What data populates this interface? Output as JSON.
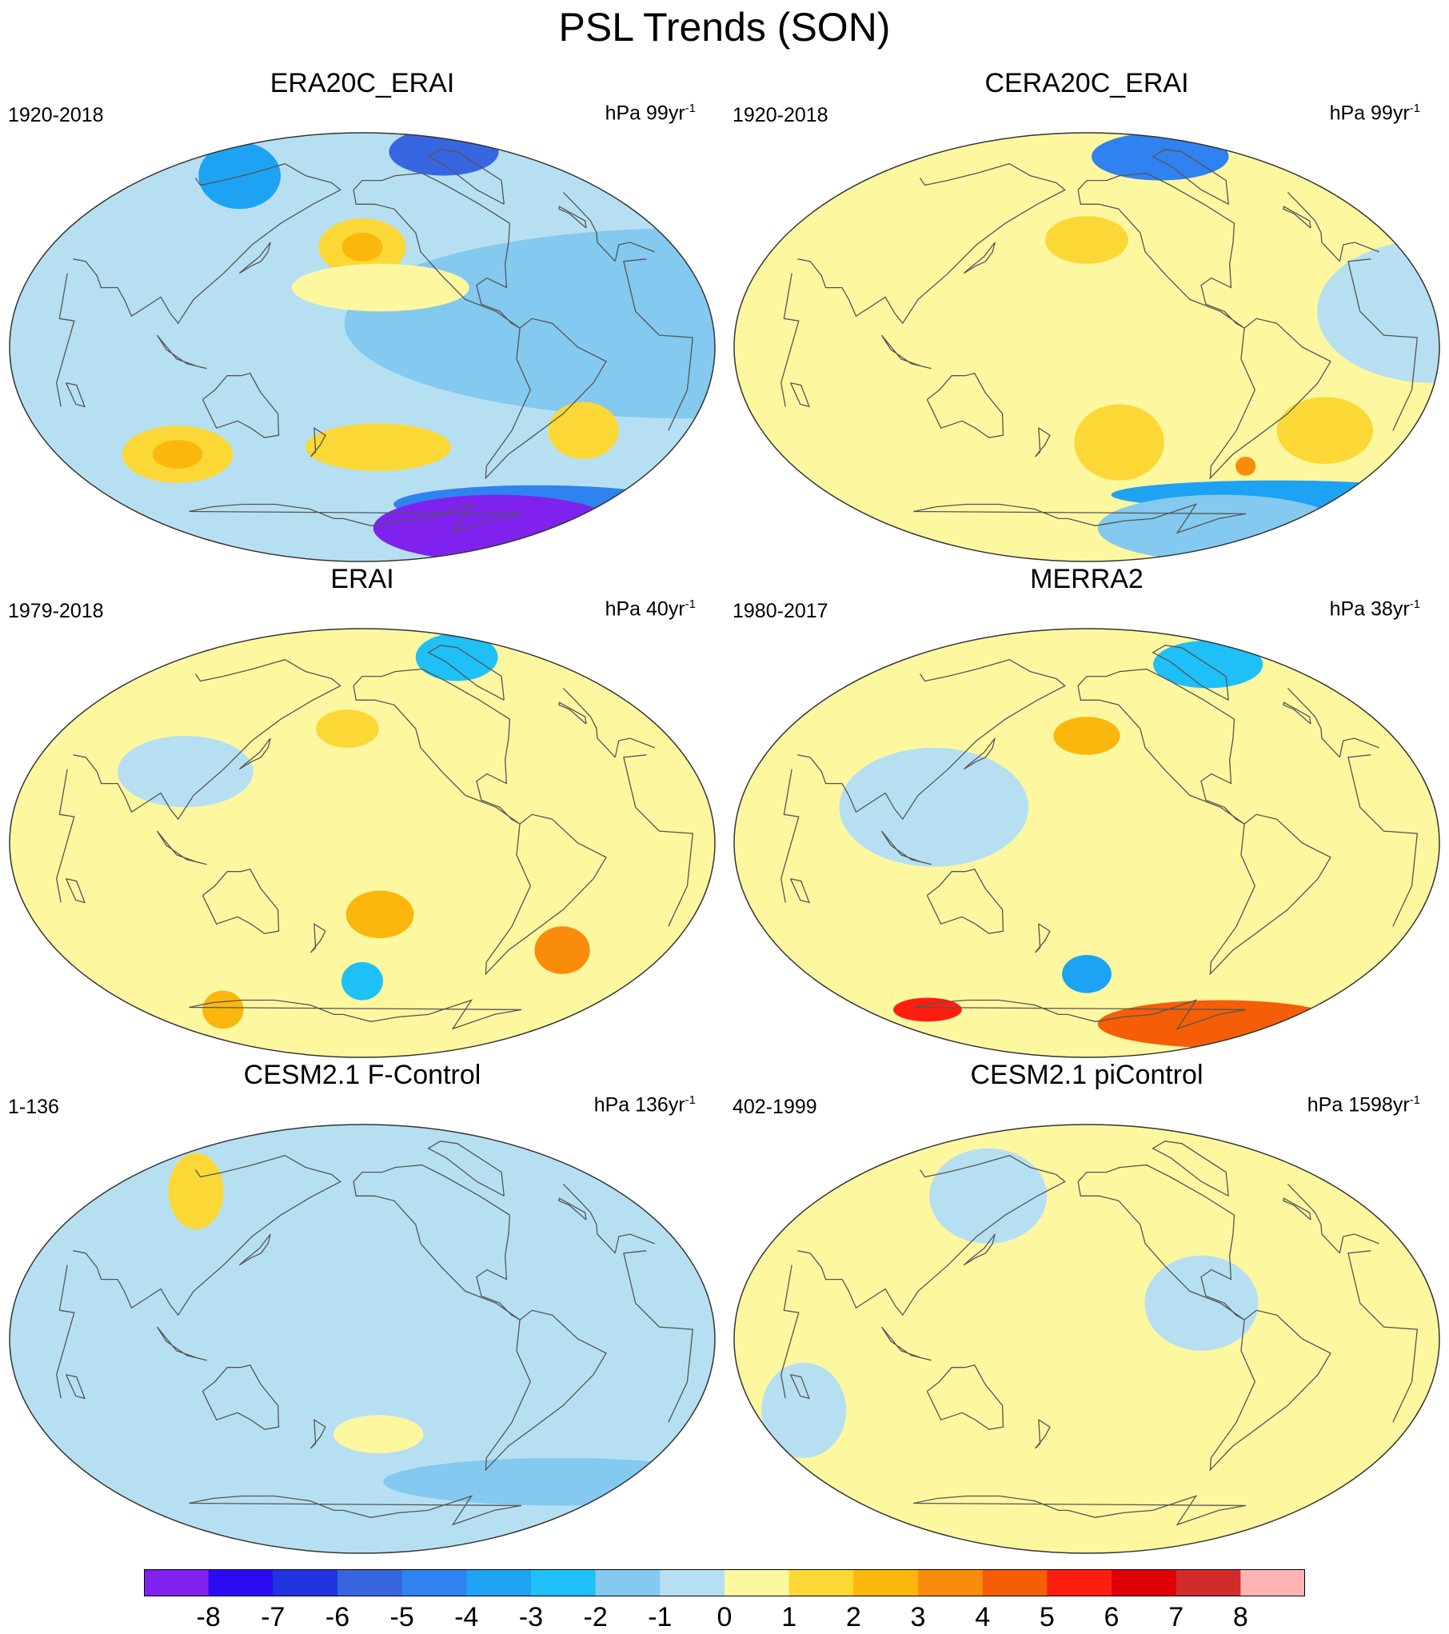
{
  "title": "PSL Trends (SON)",
  "colors": {
    "levels": [
      "#7f22ee",
      "#2b0cf2",
      "#2234e0",
      "#3766e0",
      "#2f82ef",
      "#1da2f4",
      "#1ec0f7",
      "#84c9ef",
      "#b6e0f2",
      "#fdf7a0",
      "#fbd835",
      "#fbb70c",
      "#f98c0a",
      "#f55d07",
      "#fe1e10",
      "#df0008",
      "#d12b2b",
      "#ffb3b2"
    ],
    "land_outline": "#555555",
    "map_border": "#333333"
  },
  "colorbar": {
    "labels": [
      "-8",
      "-7",
      "-6",
      "-5",
      "-4",
      "-3",
      "-2",
      "-1",
      "0",
      "1",
      "2",
      "3",
      "4",
      "5",
      "6",
      "7",
      "8"
    ]
  },
  "panels": [
    {
      "title": "ERA20C_ERAI",
      "period": "1920-2018",
      "units_prefix": "hPa 99yr",
      "units_exp": "-1",
      "base_level": 8,
      "blobs": [
        {
          "lon": 10,
          "lat": 10,
          "rlon": 180,
          "rlat": 40,
          "level": 7
        },
        {
          "lon": -40,
          "lat": 82,
          "rlon": 80,
          "rlat": 10,
          "level": 3
        },
        {
          "lon": 70,
          "lat": 72,
          "rlon": 60,
          "rlat": 14,
          "level": 5
        },
        {
          "lon": -160,
          "lat": 42,
          "rlon": 30,
          "rlat": 12,
          "level": 10
        },
        {
          "lon": -160,
          "lat": 42,
          "rlon": 14,
          "rlat": 6,
          "level": 11
        },
        {
          "lon": -150,
          "lat": 25,
          "rlon": 50,
          "rlat": 10,
          "level": 9
        },
        {
          "lon": -150,
          "lat": -42,
          "rlon": 50,
          "rlat": 10,
          "level": 10
        },
        {
          "lon": 80,
          "lat": -45,
          "rlon": 40,
          "rlat": 12,
          "level": 10
        },
        {
          "lon": 80,
          "lat": -45,
          "rlon": 18,
          "rlat": 6,
          "level": 11
        },
        {
          "lon": -30,
          "lat": -35,
          "rlon": 22,
          "rlat": 12,
          "level": 10
        },
        {
          "lon": 0,
          "lat": -66,
          "rlon": 180,
          "rlat": 8,
          "level": 4
        },
        {
          "lon": 0,
          "lat": -76,
          "rlon": 180,
          "rlat": 14,
          "level": 0
        }
      ]
    },
    {
      "title": "CERA20C_ERAI",
      "period": "1920-2018",
      "units_prefix": "hPa 99yr",
      "units_exp": "-1",
      "base_level": 9,
      "blobs": [
        {
          "lon": 20,
          "lat": 15,
          "rlon": 60,
          "rlat": 30,
          "level": 8
        },
        {
          "lon": -60,
          "lat": 80,
          "rlon": 100,
          "rlat": 10,
          "level": 4
        },
        {
          "lon": -160,
          "lat": 45,
          "rlon": 30,
          "rlat": 10,
          "level": 10
        },
        {
          "lon": -140,
          "lat": -40,
          "rlon": 30,
          "rlat": 16,
          "level": 10
        },
        {
          "lon": -20,
          "lat": -35,
          "rlon": 30,
          "rlat": 14,
          "level": 10
        },
        {
          "lon": -50,
          "lat": -50,
          "rlon": 8,
          "rlat": 4,
          "level": 12
        },
        {
          "lon": 0,
          "lat": -62,
          "rlon": 180,
          "rlat": 6,
          "level": 5
        },
        {
          "lon": 0,
          "lat": -76,
          "rlon": 180,
          "rlat": 14,
          "level": 7
        }
      ]
    },
    {
      "title": "ERAI",
      "period": "1979-2018",
      "units_prefix": "hPa 40yr",
      "units_exp": "-1",
      "base_level": 9,
      "blobs": [
        {
          "lon": 100,
          "lat": 30,
          "rlon": 40,
          "rlat": 15,
          "level": 8
        },
        {
          "lon": -40,
          "lat": 78,
          "rlon": 60,
          "rlat": 10,
          "level": 6
        },
        {
          "lon": -170,
          "lat": 48,
          "rlon": 24,
          "rlat": 8,
          "level": 10
        },
        {
          "lon": -150,
          "lat": -30,
          "rlon": 20,
          "rlat": 10,
          "level": 11
        },
        {
          "lon": -160,
          "lat": -58,
          "rlon": 20,
          "rlat": 8,
          "level": 6
        },
        {
          "lon": -30,
          "lat": -45,
          "rlon": 20,
          "rlat": 10,
          "level": 12
        },
        {
          "lon": 60,
          "lat": -70,
          "rlon": 30,
          "rlat": 8,
          "level": 11
        }
      ]
    },
    {
      "title": "MERRA2",
      "period": "1980-2017",
      "units_prefix": "hPa 38yr",
      "units_exp": "-1",
      "base_level": 9,
      "blobs": [
        {
          "lon": 120,
          "lat": 15,
          "rlon": 50,
          "rlat": 25,
          "level": 8
        },
        {
          "lon": -20,
          "lat": 75,
          "rlon": 80,
          "rlat": 10,
          "level": 6
        },
        {
          "lon": -160,
          "lat": 45,
          "rlon": 24,
          "rlat": 8,
          "level": 11
        },
        {
          "lon": -160,
          "lat": -55,
          "rlon": 22,
          "rlat": 8,
          "level": 5
        },
        {
          "lon": 0,
          "lat": -76,
          "rlon": 180,
          "rlat": 10,
          "level": 13
        },
        {
          "lon": 40,
          "lat": -70,
          "rlon": 50,
          "rlat": 5,
          "level": 14
        }
      ]
    },
    {
      "title": "CESM2.1 F-Control",
      "period": "1-136",
      "units_prefix": "hPa 136yr",
      "units_exp": "-1",
      "base_level": 8,
      "blobs": [
        {
          "lon": 60,
          "lat": 62,
          "rlon": 30,
          "rlat": 16,
          "level": 10
        },
        {
          "lon": -150,
          "lat": -40,
          "rlon": 30,
          "rlat": 8,
          "level": 9
        },
        {
          "lon": 0,
          "lat": -60,
          "rlon": 180,
          "rlat": 10,
          "level": 7
        }
      ]
    },
    {
      "title": "CESM2.1 piControl",
      "period": "402-1999",
      "units_prefix": "hPa 1598yr",
      "units_exp": "-1",
      "base_level": 9,
      "blobs": [
        {
          "lon": -100,
          "lat": 15,
          "rlon": 30,
          "rlat": 20,
          "level": 8
        },
        {
          "lon": 40,
          "lat": -30,
          "rlon": 25,
          "rlat": 20,
          "level": 8
        },
        {
          "lon": 120,
          "lat": 60,
          "rlon": 60,
          "rlat": 20,
          "level": 8
        }
      ]
    }
  ]
}
